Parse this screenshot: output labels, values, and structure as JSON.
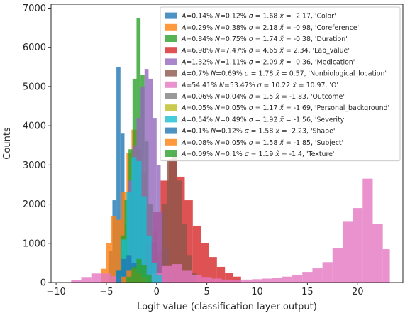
{
  "chart_data": {
    "type": "bar",
    "title": "",
    "xlabel": "Logit value (classification layer output)",
    "ylabel": "Counts",
    "xlim": [
      -10.5,
      24.5
    ],
    "ylim": [
      0,
      7100
    ],
    "xticks": [
      -10,
      -5,
      0,
      5,
      10,
      15,
      20
    ],
    "xtick_labels": [
      "−10",
      "−5",
      "0",
      "5",
      "10",
      "15",
      "20"
    ],
    "yticks": [
      0,
      1000,
      2000,
      3000,
      4000,
      5000,
      6000,
      7000
    ],
    "ytick_labels": [
      "0",
      "1000",
      "2000",
      "3000",
      "4000",
      "5000",
      "6000",
      "7000"
    ],
    "grid": false,
    "legend_position": "top-right",
    "bar_alpha": 0.8,
    "series": [
      {
        "name": "A=0.14% N=0.12% σ = 1.68 x̃ = -2.17, 'Color'",
        "legend_parts": [
          "A",
          "=0.14% ",
          "N",
          "=0.12% ",
          "σ",
          " = 1.68 ",
          "x̃",
          " = -2.17, 'Color'"
        ],
        "color": "#1f77b4",
        "bins": [
          [
            -4.8,
            -4.4,
            800
          ],
          [
            -4.4,
            -4.0,
            2100
          ],
          [
            -4.0,
            -3.6,
            5500
          ],
          [
            -3.6,
            -3.2,
            3800
          ],
          [
            -3.2,
            -2.8,
            1500
          ],
          [
            -2.8,
            -2.4,
            500
          ],
          [
            -2.4,
            -2.0,
            200
          ]
        ]
      },
      {
        "name": "A=0.29% N=0.38% σ = 2.18 x̃ = -0.98, 'Coreference'",
        "legend_parts": [
          "A",
          "=0.29% ",
          "N",
          "=0.38% ",
          "σ",
          " = 2.18 ",
          "x̃",
          " = -0.98, 'Coreference'"
        ],
        "color": "#ff7f0e",
        "bins": [
          [
            -5.5,
            -5.0,
            350
          ],
          [
            -5.0,
            -4.5,
            1000
          ],
          [
            -4.5,
            -4.0,
            1700
          ],
          [
            -4.0,
            -3.5,
            1600
          ],
          [
            -3.5,
            -3.0,
            2300
          ],
          [
            -3.0,
            -2.5,
            3300
          ],
          [
            -2.5,
            -2.0,
            3900
          ],
          [
            -2.0,
            -1.5,
            3400
          ],
          [
            -1.5,
            -1.0,
            2800
          ],
          [
            -1.0,
            -0.5,
            2000
          ],
          [
            -0.5,
            0.0,
            1300
          ],
          [
            0.0,
            0.5,
            800
          ],
          [
            0.5,
            1.0,
            500
          ],
          [
            1.0,
            1.5,
            300
          ],
          [
            1.5,
            2.0,
            150
          ]
        ]
      },
      {
        "name": "A=0.84% N=0.75% σ = 1.74 x̃ = -0.38, 'Duration'",
        "legend_parts": [
          "A",
          "=0.84% ",
          "N",
          "=0.75% ",
          "σ",
          " = 1.74 ",
          "x̃",
          " = -0.38, 'Duration'"
        ],
        "color": "#2ca02c",
        "bins": [
          [
            -4.0,
            -3.6,
            300
          ],
          [
            -3.6,
            -3.2,
            1200
          ],
          [
            -3.2,
            -2.8,
            2100
          ],
          [
            -2.8,
            -2.4,
            3400
          ],
          [
            -2.4,
            -2.0,
            5200
          ],
          [
            -2.0,
            -1.6,
            6750
          ],
          [
            -1.6,
            -1.2,
            5300
          ],
          [
            -1.2,
            -0.8,
            3600
          ],
          [
            -0.8,
            -0.4,
            2000
          ],
          [
            -0.4,
            0.0,
            1000
          ],
          [
            0.0,
            0.4,
            500
          ],
          [
            0.4,
            0.8,
            250
          ]
        ]
      },
      {
        "name": "A=6.98% N=7.47% σ = 4.65 x̃ = 2.34, 'Lab_value'",
        "legend_parts": [
          "A",
          "=6.98% ",
          "N",
          "=7.47% ",
          "σ",
          " = 4.65 ",
          "x̃",
          " = 2.34, 'Lab_value'"
        ],
        "color": "#d62728",
        "bins": [
          [
            -2.0,
            -1.2,
            500
          ],
          [
            -1.2,
            -0.4,
            1000
          ],
          [
            -0.4,
            0.4,
            1800
          ],
          [
            0.4,
            1.2,
            2600
          ],
          [
            1.2,
            2.0,
            3150
          ],
          [
            2.0,
            2.8,
            2700
          ],
          [
            2.8,
            3.6,
            2100
          ],
          [
            3.6,
            4.4,
            1450
          ],
          [
            4.4,
            5.2,
            1000
          ],
          [
            5.2,
            6.0,
            650
          ],
          [
            6.0,
            6.8,
            400
          ],
          [
            6.8,
            7.6,
            250
          ],
          [
            7.6,
            8.4,
            150
          ]
        ]
      },
      {
        "name": "A=1.32% N=1.11% σ = 2.09 x̃ = -0.36, 'Medication'",
        "legend_parts": [
          "A",
          "=1.32% ",
          "N",
          "=1.11% ",
          "σ",
          " = 2.09 ",
          "x̃",
          " = -0.36, 'Medication'"
        ],
        "color": "#9467bd",
        "bins": [
          [
            -2.8,
            -2.4,
            2600
          ],
          [
            -2.4,
            -2.0,
            3500
          ],
          [
            -2.0,
            -1.6,
            4200
          ],
          [
            -1.6,
            -1.2,
            5000
          ],
          [
            -1.2,
            -0.8,
            5450
          ],
          [
            -0.8,
            -0.4,
            5200
          ],
          [
            -0.4,
            0.0,
            4200
          ],
          [
            0.0,
            0.4,
            3000
          ],
          [
            0.4,
            0.8,
            1800
          ],
          [
            0.8,
            1.2,
            900
          ],
          [
            1.2,
            1.6,
            400
          ]
        ]
      },
      {
        "name": "A=0.7% N=0.69% σ = 1.78 x̃ = 0.57, 'Nonbiological_location'",
        "legend_parts": [
          "A",
          "=0.7% ",
          "N",
          "=0.69% ",
          "σ",
          " = 1.78 ",
          "x̃",
          " = 0.57, 'Nonbiological_location'"
        ],
        "color": "#8c564b",
        "bins": [
          [
            0.5,
            1.0,
            2000
          ],
          [
            1.0,
            1.5,
            3100
          ],
          [
            1.5,
            2.0,
            3300
          ],
          [
            2.0,
            2.5,
            2600
          ],
          [
            2.5,
            3.0,
            1500
          ],
          [
            3.0,
            3.5,
            700
          ],
          [
            3.5,
            4.0,
            250
          ]
        ]
      },
      {
        "name": "A=54.41% N=53.47% σ = 10.22 x̃ = 10.97, 'O'",
        "legend_parts": [
          "A",
          "=54.41% ",
          "N",
          "=53.47% ",
          "σ",
          " = 10.22 ",
          "x̃",
          " = 10.97, 'O'"
        ],
        "color": "#e377c2",
        "bins": [
          [
            -8.5,
            -7.5,
            60
          ],
          [
            -7.5,
            -6.5,
            140
          ],
          [
            -6.5,
            -5.5,
            230
          ],
          [
            -5.5,
            -4.5,
            230
          ],
          [
            -4.5,
            -3.5,
            160
          ],
          [
            -3.5,
            -2.5,
            120
          ],
          [
            -2.5,
            -1.5,
            110
          ],
          [
            -1.5,
            -0.5,
            130
          ],
          [
            -0.5,
            0.5,
            240
          ],
          [
            0.5,
            1.5,
            420
          ],
          [
            1.5,
            2.5,
            470
          ],
          [
            2.5,
            3.5,
            300
          ],
          [
            3.5,
            4.5,
            190
          ],
          [
            4.5,
            5.5,
            140
          ],
          [
            5.5,
            6.5,
            100
          ],
          [
            6.5,
            7.5,
            75
          ],
          [
            7.5,
            8.5,
            70
          ],
          [
            8.5,
            9.5,
            75
          ],
          [
            9.5,
            10.5,
            85
          ],
          [
            10.5,
            11.5,
            100
          ],
          [
            11.5,
            12.5,
            120
          ],
          [
            12.5,
            13.5,
            150
          ],
          [
            13.5,
            14.5,
            200
          ],
          [
            14.5,
            15.5,
            270
          ],
          [
            15.5,
            16.5,
            360
          ],
          [
            16.5,
            17.5,
            520
          ],
          [
            17.5,
            18.5,
            880
          ],
          [
            18.5,
            19.5,
            1550
          ],
          [
            19.5,
            20.5,
            1900
          ],
          [
            20.5,
            21.5,
            2650
          ],
          [
            21.5,
            22.5,
            1500
          ],
          [
            22.5,
            23.2,
            850
          ]
        ]
      },
      {
        "name": "A=0.06% N=0.04% σ = 1.5 x̃ = -1.83, 'Outcome'",
        "legend_parts": [
          "A",
          "=0.06% ",
          "N",
          "=0.04% ",
          "σ",
          " = 1.5 ",
          "x̃",
          " = -1.83, 'Outcome'"
        ],
        "color": "#7f7f7f",
        "bins": [
          [
            -3.5,
            -3.0,
            100
          ],
          [
            -3.0,
            -2.5,
            200
          ],
          [
            -2.5,
            -2.0,
            250
          ],
          [
            -2.0,
            -1.5,
            200
          ],
          [
            -1.5,
            -1.0,
            120
          ]
        ]
      },
      {
        "name": "A=0.05% N=0.05% σ = 1.17 x̃ = -1.69, 'Personal_background'",
        "legend_parts": [
          "A",
          "=0.05% ",
          "N",
          "=0.05% ",
          "σ",
          " = 1.17 ",
          "x̃",
          " = -1.69, 'Personal_background'"
        ],
        "color": "#bcbd22",
        "bins": [
          [
            -3.0,
            -2.5,
            100
          ],
          [
            -2.5,
            -2.0,
            220
          ],
          [
            -2.0,
            -1.5,
            260
          ],
          [
            -1.5,
            -1.0,
            180
          ],
          [
            -1.0,
            -0.5,
            80
          ]
        ]
      },
      {
        "name": "A=0.54% N=0.49% σ = 1.92 x̃ = -1.56, 'Severity'",
        "legend_parts": [
          "A",
          "=0.54% ",
          "N",
          "=0.49% ",
          "σ",
          " = 1.92 ",
          "x̃",
          " = -1.56, 'Severity'"
        ],
        "color": "#17becf",
        "bins": [
          [
            -4.0,
            -3.5,
            300
          ],
          [
            -3.5,
            -3.0,
            1100
          ],
          [
            -3.0,
            -2.5,
            2300
          ],
          [
            -2.5,
            -2.0,
            3200
          ],
          [
            -2.0,
            -1.5,
            3100
          ],
          [
            -1.5,
            -1.0,
            2200
          ],
          [
            -1.0,
            -0.5,
            1200
          ],
          [
            -0.5,
            0.0,
            500
          ],
          [
            0.0,
            0.5,
            200
          ]
        ]
      },
      {
        "name": "A=0.1% N=0.12% σ = 1.58 x̃ = -2.23, 'Shape'",
        "legend_parts": [
          "A",
          "=0.1% ",
          "N",
          "=0.12% ",
          "σ",
          " = 1.58 ",
          "x̃",
          " = -2.23, 'Shape'"
        ],
        "color": "#1f77b4",
        "bins": [
          [
            -4.0,
            -3.5,
            300
          ],
          [
            -3.5,
            -3.0,
            600
          ],
          [
            -3.0,
            -2.5,
            700
          ],
          [
            -2.5,
            -2.0,
            500
          ],
          [
            -2.0,
            -1.5,
            250
          ]
        ]
      },
      {
        "name": "A=0.08% N=0.05% σ = 1.58 x̃ = -1.85, 'Subject'",
        "legend_parts": [
          "A",
          "=0.08% ",
          "N",
          "=0.05% ",
          "σ",
          " = 1.58 ",
          "x̃",
          " = -1.85, 'Subject'"
        ],
        "color": "#ff7f0e",
        "bins": [
          [
            -3.5,
            -3.0,
            150
          ],
          [
            -3.0,
            -2.5,
            300
          ],
          [
            -2.5,
            -2.0,
            350
          ],
          [
            -2.0,
            -1.5,
            250
          ],
          [
            -1.5,
            -1.0,
            120
          ]
        ]
      },
      {
        "name": "A=0.09% N=0.1% σ = 1.19 x̃ = -1.4, 'Texture'",
        "legend_parts": [
          "A",
          "=0.09% ",
          "N",
          "=0.1% ",
          "σ",
          " = 1.19 ",
          "x̃",
          " = -1.4, 'Texture'"
        ],
        "color": "#2ca02c",
        "bins": [
          [
            -3.0,
            -2.5,
            150
          ],
          [
            -2.5,
            -2.0,
            400
          ],
          [
            -2.0,
            -1.5,
            600
          ],
          [
            -1.5,
            -1.0,
            450
          ],
          [
            -1.0,
            -0.5,
            200
          ]
        ]
      }
    ]
  }
}
